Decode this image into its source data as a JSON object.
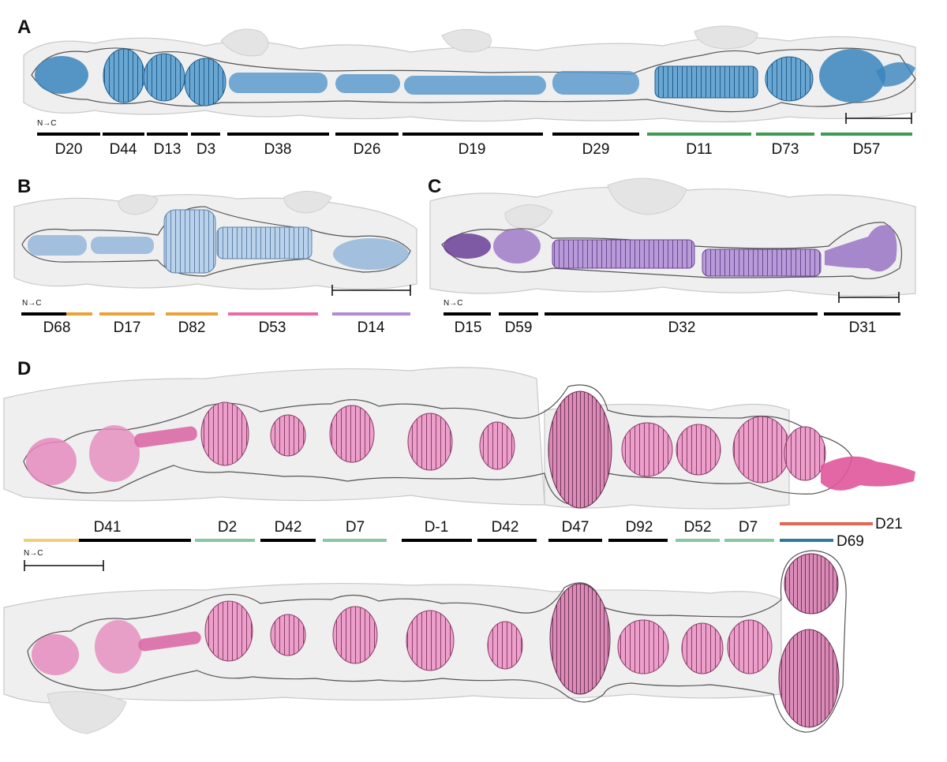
{
  "panels": {
    "A": {
      "letter": "A",
      "orientation": "N→C",
      "domains": [
        {
          "label": "D20",
          "color": "#000000"
        },
        {
          "label": "D44",
          "color": "#000000"
        },
        {
          "label": "D13",
          "color": "#000000"
        },
        {
          "label": "D3",
          "color": "#000000"
        },
        {
          "label": "D38",
          "color": "#000000"
        },
        {
          "label": "D26",
          "color": "#000000"
        },
        {
          "label": "D19",
          "color": "#000000"
        },
        {
          "label": "D29",
          "color": "#000000"
        },
        {
          "label": "D11",
          "color": "#3f9a54"
        },
        {
          "label": "D73",
          "color": "#3f9a54"
        },
        {
          "label": "D57",
          "color": "#3f9a54"
        }
      ],
      "ribbon_color": "#3a85bd"
    },
    "B": {
      "letter": "B",
      "orientation": "N→C",
      "domains": [
        {
          "label": "D68",
          "color": "#000000"
        },
        {
          "label": "D17",
          "color": "#e9a23a"
        },
        {
          "label": "D82",
          "color": "#e9a23a"
        },
        {
          "label": "D53",
          "color": "#e86aa6"
        },
        {
          "label": "D14",
          "color": "#b38bd0"
        }
      ],
      "ribbon_color": "#8fb4da"
    },
    "C": {
      "letter": "C",
      "orientation": "N→C",
      "domains": [
        {
          "label": "D15",
          "color": "#000000"
        },
        {
          "label": "D59",
          "color": "#000000"
        },
        {
          "label": "D32",
          "color": "#000000"
        },
        {
          "label": "D31",
          "color": "#000000"
        }
      ],
      "ribbon_color": "#9a74c4"
    },
    "D": {
      "letter": "D",
      "orientation": "N→C",
      "domains": [
        {
          "label": "D41",
          "color": "#000000"
        },
        {
          "label": "D2",
          "color": "#86c9a1"
        },
        {
          "label": "D42",
          "color": "#000000"
        },
        {
          "label": "D7",
          "color": "#86c9a1"
        },
        {
          "label": "D-1",
          "color": "#000000"
        },
        {
          "label": "D42",
          "color": "#000000"
        },
        {
          "label": "D47",
          "color": "#000000"
        },
        {
          "label": "D92",
          "color": "#000000"
        },
        {
          "label": "D52",
          "color": "#86c9a1"
        },
        {
          "label": "D7",
          "color": "#86c9a1"
        },
        {
          "label": "D21",
          "color": "#e06a55"
        },
        {
          "label": "D69",
          "color": "#2f7aa3"
        }
      ],
      "ribbon_color": "#e58bbd",
      "n_terminal_segment_color": "#f3cd7a"
    }
  }
}
